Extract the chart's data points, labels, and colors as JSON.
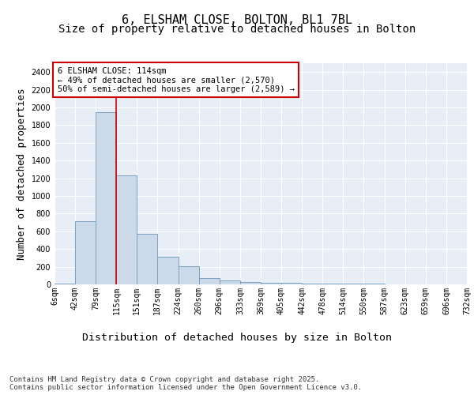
{
  "title1": "6, ELSHAM CLOSE, BOLTON, BL1 7BL",
  "title2": "Size of property relative to detached houses in Bolton",
  "xlabel": "Distribution of detached houses by size in Bolton",
  "ylabel": "Number of detached properties",
  "bar_color": "#ccd9e8",
  "bar_edgecolor": "#7ba0c0",
  "vline_color": "#cc0000",
  "vline_x": 115,
  "annotation_text": "6 ELSHAM CLOSE: 114sqm\n← 49% of detached houses are smaller (2,570)\n50% of semi-detached houses are larger (2,589) →",
  "annotation_box_edgecolor": "#cc0000",
  "annotation_box_facecolor": "white",
  "footer": "Contains HM Land Registry data © Crown copyright and database right 2025.\nContains public sector information licensed under the Open Government Licence v3.0.",
  "bin_edges": [
    6,
    42,
    79,
    115,
    151,
    187,
    224,
    260,
    296,
    333,
    369,
    405,
    442,
    478,
    514,
    550,
    587,
    623,
    659,
    696,
    732
  ],
  "bin_counts": [
    5,
    710,
    1950,
    1235,
    570,
    310,
    205,
    75,
    45,
    30,
    20,
    15,
    10,
    8,
    6,
    5,
    4,
    3,
    2,
    2
  ],
  "ylim": [
    0,
    2500
  ],
  "yticks": [
    0,
    200,
    400,
    600,
    800,
    1000,
    1200,
    1400,
    1600,
    1800,
    2000,
    2200,
    2400
  ],
  "bg_color": "#e8eef6",
  "grid_color": "white",
  "title_fontsize": 11,
  "subtitle_fontsize": 10,
  "axis_label_fontsize": 9,
  "tick_fontsize": 7,
  "footer_fontsize": 6.5,
  "annotation_fontsize": 7.5
}
